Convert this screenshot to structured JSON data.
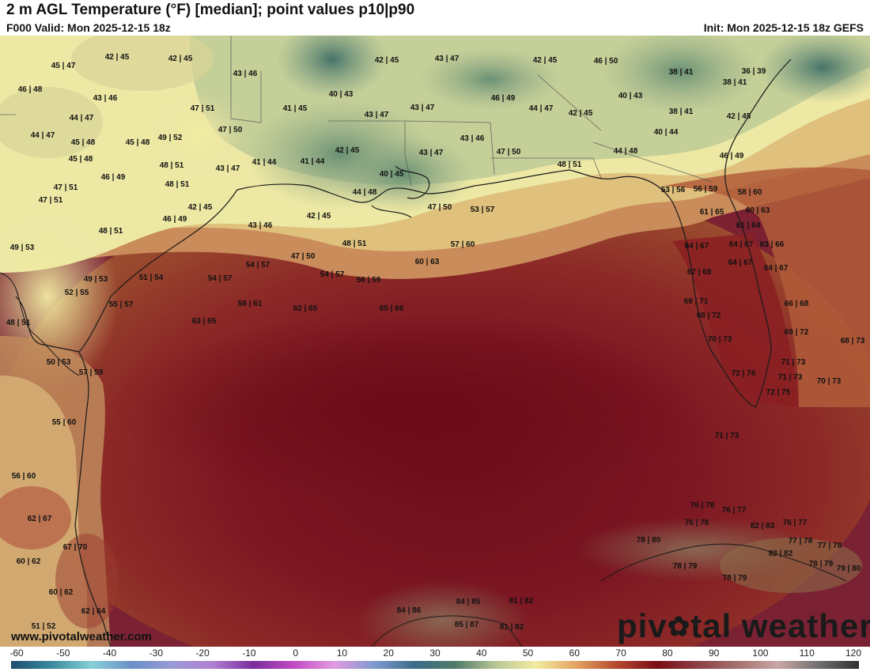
{
  "header": {
    "title": "2 m AGL Temperature (°F) [median]; point values p10|p90",
    "valid": "F000 Valid: Mon 2025-12-15 18z",
    "init": "Init: Mon 2025-12-15 18z GEFS"
  },
  "footer": {
    "site_url": "www.pivotalweather.com",
    "brand_left": "piv",
    "brand_right": "tal weather",
    "brand_icon": "gear-icon"
  },
  "colorbar": {
    "ticks": [
      "-60",
      "-50",
      "-40",
      "-30",
      "-20",
      "-10",
      "0",
      "10",
      "20",
      "30",
      "40",
      "50",
      "60",
      "70",
      "80",
      "90",
      "100",
      "110",
      "120"
    ],
    "colors": [
      "#1f4e6e",
      "#3b8a9e",
      "#86cfd6",
      "#6b8fc6",
      "#9a9ad8",
      "#b07fd1",
      "#7a2d9c",
      "#c24bc4",
      "#e29be0",
      "#7e9ad1",
      "#3b6d88",
      "#4f7a68",
      "#b8c796",
      "#f2eba2",
      "#e3a462",
      "#b4492f",
      "#7a0c17",
      "#8c3f43",
      "#a57270",
      "#c8a7a5",
      "#707070",
      "#303030"
    ]
  },
  "point_values": [
    "42 | 45",
    "42 | 45",
    "45 | 47",
    "46 | 48",
    "43 | 46",
    "43 | 46",
    "44 | 47",
    "47 | 51",
    "44 | 47",
    "45 | 48",
    "45 | 48",
    "49 | 52",
    "47 | 50",
    "45 | 48",
    "48 | 51",
    "43 | 47",
    "46 | 49",
    "48 | 51",
    "47 | 51",
    "47 | 51",
    "42 | 45",
    "46 | 49",
    "48 | 51",
    "49 | 53",
    "43 | 46",
    "41 | 45",
    "40 | 43",
    "43 | 47",
    "42 | 45",
    "43 | 47",
    "43 | 47",
    "41 | 44",
    "41 | 44",
    "42 | 45",
    "43 | 47",
    "43 | 46",
    "40 | 45",
    "44 | 48",
    "42 | 45",
    "47 | 50",
    "47 | 50",
    "48 | 51",
    "42 | 45",
    "46 | 50",
    "46 | 49",
    "44 | 47",
    "42 | 45",
    "40 | 43",
    "38 | 41",
    "36 | 39",
    "38 | 41",
    "38 | 41",
    "42 | 45",
    "40 | 44",
    "44 | 48",
    "46 | 49",
    "53 | 56",
    "56 | 59",
    "58 | 60",
    "61 | 65",
    "60 | 63",
    "61 | 64",
    "53 | 57",
    "57 | 60",
    "48 | 51",
    "47 | 50",
    "54 | 57",
    "49 | 53",
    "51 | 54",
    "54 | 57",
    "60 | 63",
    "54 | 57",
    "56 | 59",
    "52 | 55",
    "55 | 57",
    "58 | 61",
    "62 | 65",
    "65 | 66",
    "64 | 67",
    "64 | 67",
    "63 | 66",
    "64 | 67",
    "64 | 67",
    "67 | 69",
    "69 | 71",
    "66 | 68",
    "68 | 72",
    "69 | 72",
    "68 | 73",
    "48 | 51",
    "63 | 65",
    "70 | 73",
    "50 | 53",
    "57 | 59",
    "71 | 73",
    "72 | 76",
    "71 | 73",
    "70 | 73",
    "72 | 75",
    "55 | 60",
    "71 | 73",
    "56 | 60",
    "76 | 78",
    "76 | 77",
    "76 | 78",
    "82 | 83",
    "76 | 77",
    "62 | 67",
    "67 | 70",
    "78 | 80",
    "77 | 78",
    "77 | 78",
    "82 | 82",
    "60 | 62",
    "78 | 79",
    "78 | 79",
    "78 | 79",
    "79 | 80",
    "60 | 62",
    "84 | 86",
    "84 | 85",
    "81 | 82",
    "62 | 64",
    "85 | 87",
    "81 | 82",
    "51 | 52"
  ]
}
